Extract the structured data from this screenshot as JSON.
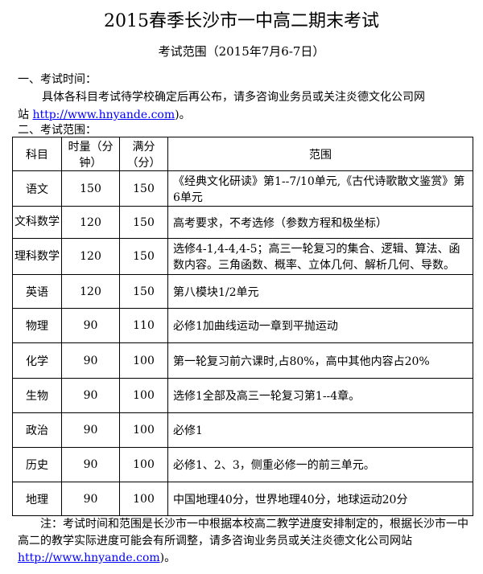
{
  "title": "2015春季长沙市一中高二期末考试",
  "subtitle": "考试范围（2015年7月6-7日）",
  "section1": {
    "heading": "一、考试时间：",
    "text": "具体各科目考试待学校确定后再公布，请多咨询业务员或关注炎德文化公司网",
    "text2": "站",
    "link": "http://www.hnyande.com",
    "tail": ")。"
  },
  "section2": {
    "heading": "二、考试范围："
  },
  "table": {
    "headers": [
      "科目",
      "时量（分钟）",
      "满分（分）",
      "范围"
    ],
    "rows": [
      [
        "语文",
        "150",
        "150",
        "《经典文化研读》第1--7/10单元,《古代诗歌散文鉴赏》第6单元"
      ],
      [
        "文科数学",
        "120",
        "150",
        "高考要求，不考选修（参数方程和极坐标）"
      ],
      [
        "理科数学",
        "120",
        "150",
        "选修4-1,4-4,4-5；高三一轮复习的集合、逻辑、算法、函数内容。三角函数、概率、立体几何、解析几何、导数。"
      ],
      [
        "英语",
        "120",
        "150",
        "第八模块1/2单元"
      ],
      [
        "物理",
        "90",
        "110",
        "必修1加曲线运动一章到平抛运动"
      ],
      [
        "化学",
        "90",
        "100",
        "第一轮复习前六课时,占80%，高中其他内容占20%"
      ],
      [
        "生物",
        "90",
        "100",
        "选修1全部及高三一轮复习第1--4章。"
      ],
      [
        "政治",
        "90",
        "100",
        "必修1"
      ],
      [
        "历史",
        "90",
        "100",
        "必修1、2、3，侧重必修一的前三单元。"
      ],
      [
        "地理",
        "90",
        "100",
        "中国地理40分，世界地理40分，地球运动20分"
      ]
    ]
  },
  "note": {
    "text": "注：考试时间和范围是长沙市一中根据本校高二教学进度安排制定的，根据长沙市一中高二的教学实际进度可能会有所调整，请多咨询业务员或关注炎德文化公司网站",
    "link": "http://www.hnyande.com",
    "tail": ")。"
  }
}
